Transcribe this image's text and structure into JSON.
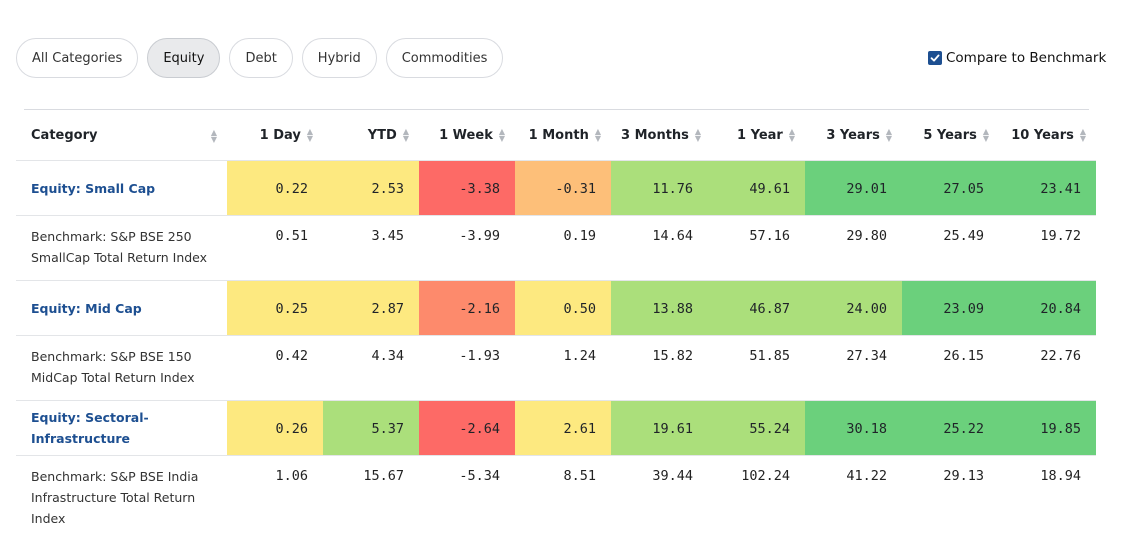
{
  "filters": [
    {
      "label": "All Categories",
      "active": false
    },
    {
      "label": "Equity",
      "active": true
    },
    {
      "label": "Debt",
      "active": false
    },
    {
      "label": "Hybrid",
      "active": false
    },
    {
      "label": "Commodities",
      "active": false
    }
  ],
  "benchmark_toggle": {
    "label": "Compare to Benchmark",
    "checked": true
  },
  "colors": {
    "yellow": "#fde980",
    "orange": "#fdbf79",
    "orange_red": "#fd8a6c",
    "red": "#fd6a66",
    "light_green": "#abdf7b",
    "green": "#6bd07c",
    "link_blue": "#1d4f91"
  },
  "table": {
    "columns": [
      "Category",
      "1 Day",
      "YTD",
      "1 Week",
      "1 Month",
      "3 Months",
      "1 Year",
      "3 Years",
      "5 Years",
      "10 Years"
    ],
    "rows": [
      {
        "type": "category",
        "name": "Equity: Small Cap",
        "values": [
          "0.22",
          "2.53",
          "-3.38",
          "-0.31",
          "11.76",
          "49.61",
          "29.01",
          "27.05",
          "23.41"
        ],
        "colors": [
          "yellow",
          "yellow",
          "red",
          "orange",
          "light_green",
          "light_green",
          "green",
          "green",
          "green"
        ]
      },
      {
        "type": "benchmark",
        "name": "Benchmark: S&P BSE 250 SmallCap Total Return Index",
        "values": [
          "0.51",
          "3.45",
          "-3.99",
          "0.19",
          "14.64",
          "57.16",
          "29.80",
          "25.49",
          "19.72"
        ]
      },
      {
        "type": "category",
        "name": "Equity: Mid Cap",
        "values": [
          "0.25",
          "2.87",
          "-2.16",
          "0.50",
          "13.88",
          "46.87",
          "24.00",
          "23.09",
          "20.84"
        ],
        "colors": [
          "yellow",
          "yellow",
          "orange_red",
          "yellow",
          "light_green",
          "light_green",
          "light_green",
          "green",
          "green"
        ]
      },
      {
        "type": "benchmark",
        "name": "Benchmark: S&P BSE 150 MidCap Total Return Index",
        "values": [
          "0.42",
          "4.34",
          "-1.93",
          "1.24",
          "15.82",
          "51.85",
          "27.34",
          "26.15",
          "22.76"
        ]
      },
      {
        "type": "category",
        "name": "Equity: Sectoral-Infrastructure",
        "values": [
          "0.26",
          "5.37",
          "-2.64",
          "2.61",
          "19.61",
          "55.24",
          "30.18",
          "25.22",
          "19.85"
        ],
        "colors": [
          "yellow",
          "light_green",
          "red",
          "yellow",
          "light_green",
          "light_green",
          "green",
          "green",
          "green"
        ]
      },
      {
        "type": "benchmark",
        "name": "Benchmark: S&P BSE India Infrastructure Total Return Index",
        "values": [
          "1.06",
          "15.67",
          "-5.34",
          "8.51",
          "39.44",
          "102.24",
          "41.22",
          "29.13",
          "18.94"
        ]
      }
    ]
  }
}
